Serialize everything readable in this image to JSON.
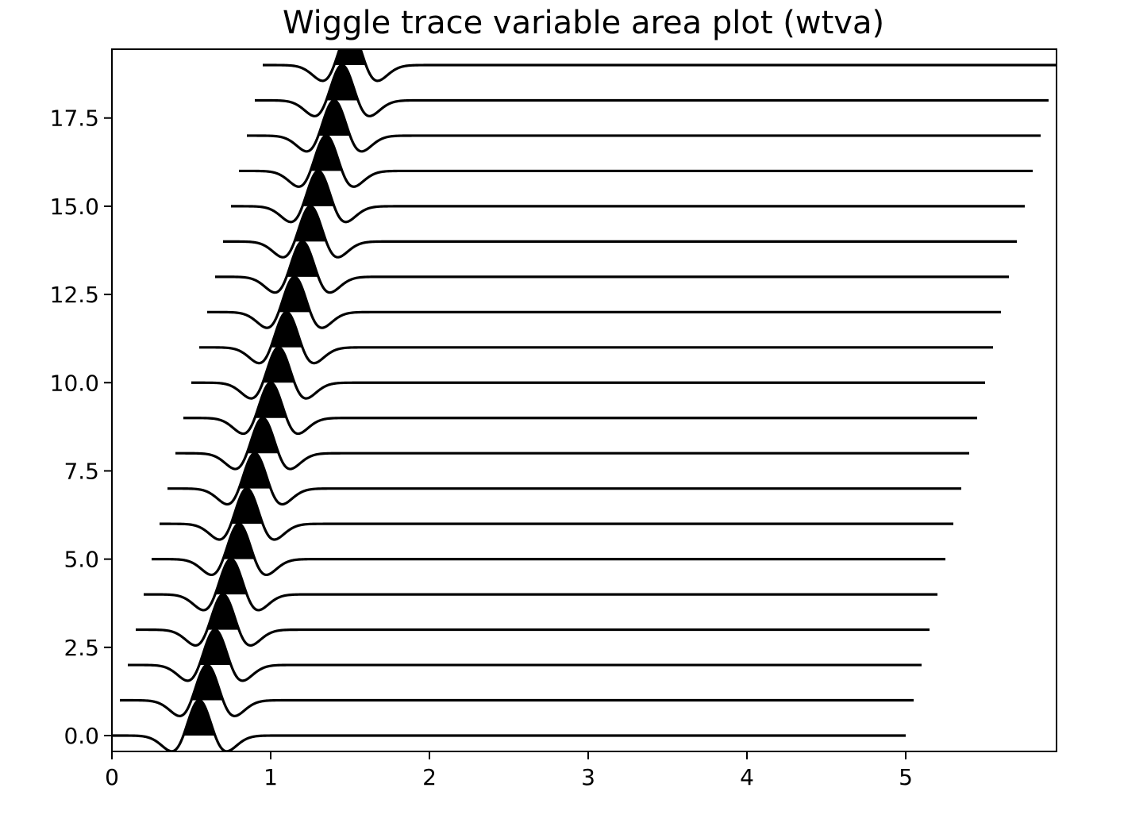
{
  "chart_data": {
    "type": "line",
    "title": "Wiggle trace variable area plot (wtva)",
    "xlabel": "",
    "ylabel": "",
    "xlim": [
      0,
      5.95
    ],
    "ylim": [
      -0.45,
      19.45
    ],
    "x_ticks": [
      0,
      1,
      2,
      3,
      4,
      5
    ],
    "x_tick_labels": [
      "0",
      "1",
      "2",
      "3",
      "4",
      "5"
    ],
    "y_ticks": [
      0.0,
      2.5,
      5.0,
      7.5,
      10.0,
      12.5,
      15.0,
      17.5
    ],
    "y_tick_labels": [
      "0.0",
      "2.5",
      "5.0",
      "7.5",
      "10.0",
      "12.5",
      "15.0",
      "17.5"
    ],
    "grid": false,
    "legend": "none",
    "line_color": "#000000",
    "fill_color": "#000000",
    "fill_rule": "positive amplitude filled",
    "trace_count": 20,
    "trace_offsets": [
      0,
      1,
      2,
      3,
      4,
      5,
      6,
      7,
      8,
      9,
      10,
      11,
      12,
      13,
      14,
      15,
      16,
      17,
      18,
      19
    ],
    "trace_start_x": [
      0.0,
      0.05,
      0.1,
      0.15,
      0.2,
      0.25,
      0.3,
      0.35,
      0.4,
      0.45,
      0.5,
      0.55,
      0.6,
      0.65,
      0.7,
      0.75,
      0.8,
      0.85,
      0.9,
      0.95
    ],
    "trace_end_x": [
      5.0,
      5.05,
      5.1,
      5.15,
      5.2,
      5.25,
      5.3,
      5.35,
      5.4,
      5.45,
      5.5,
      5.55,
      5.6,
      5.65,
      5.7,
      5.75,
      5.8,
      5.85,
      5.9,
      5.95
    ],
    "peak_x": [
      0.55,
      0.6,
      0.65,
      0.7,
      0.75,
      0.8,
      0.85,
      0.9,
      0.95,
      1.0,
      1.05,
      1.1,
      1.15,
      1.2,
      1.25,
      1.3,
      1.35,
      1.4,
      1.45,
      1.5
    ],
    "wavelet": "ricker",
    "wavelet_sigma": 0.1,
    "wavelet_amplitude": 1.0
  }
}
